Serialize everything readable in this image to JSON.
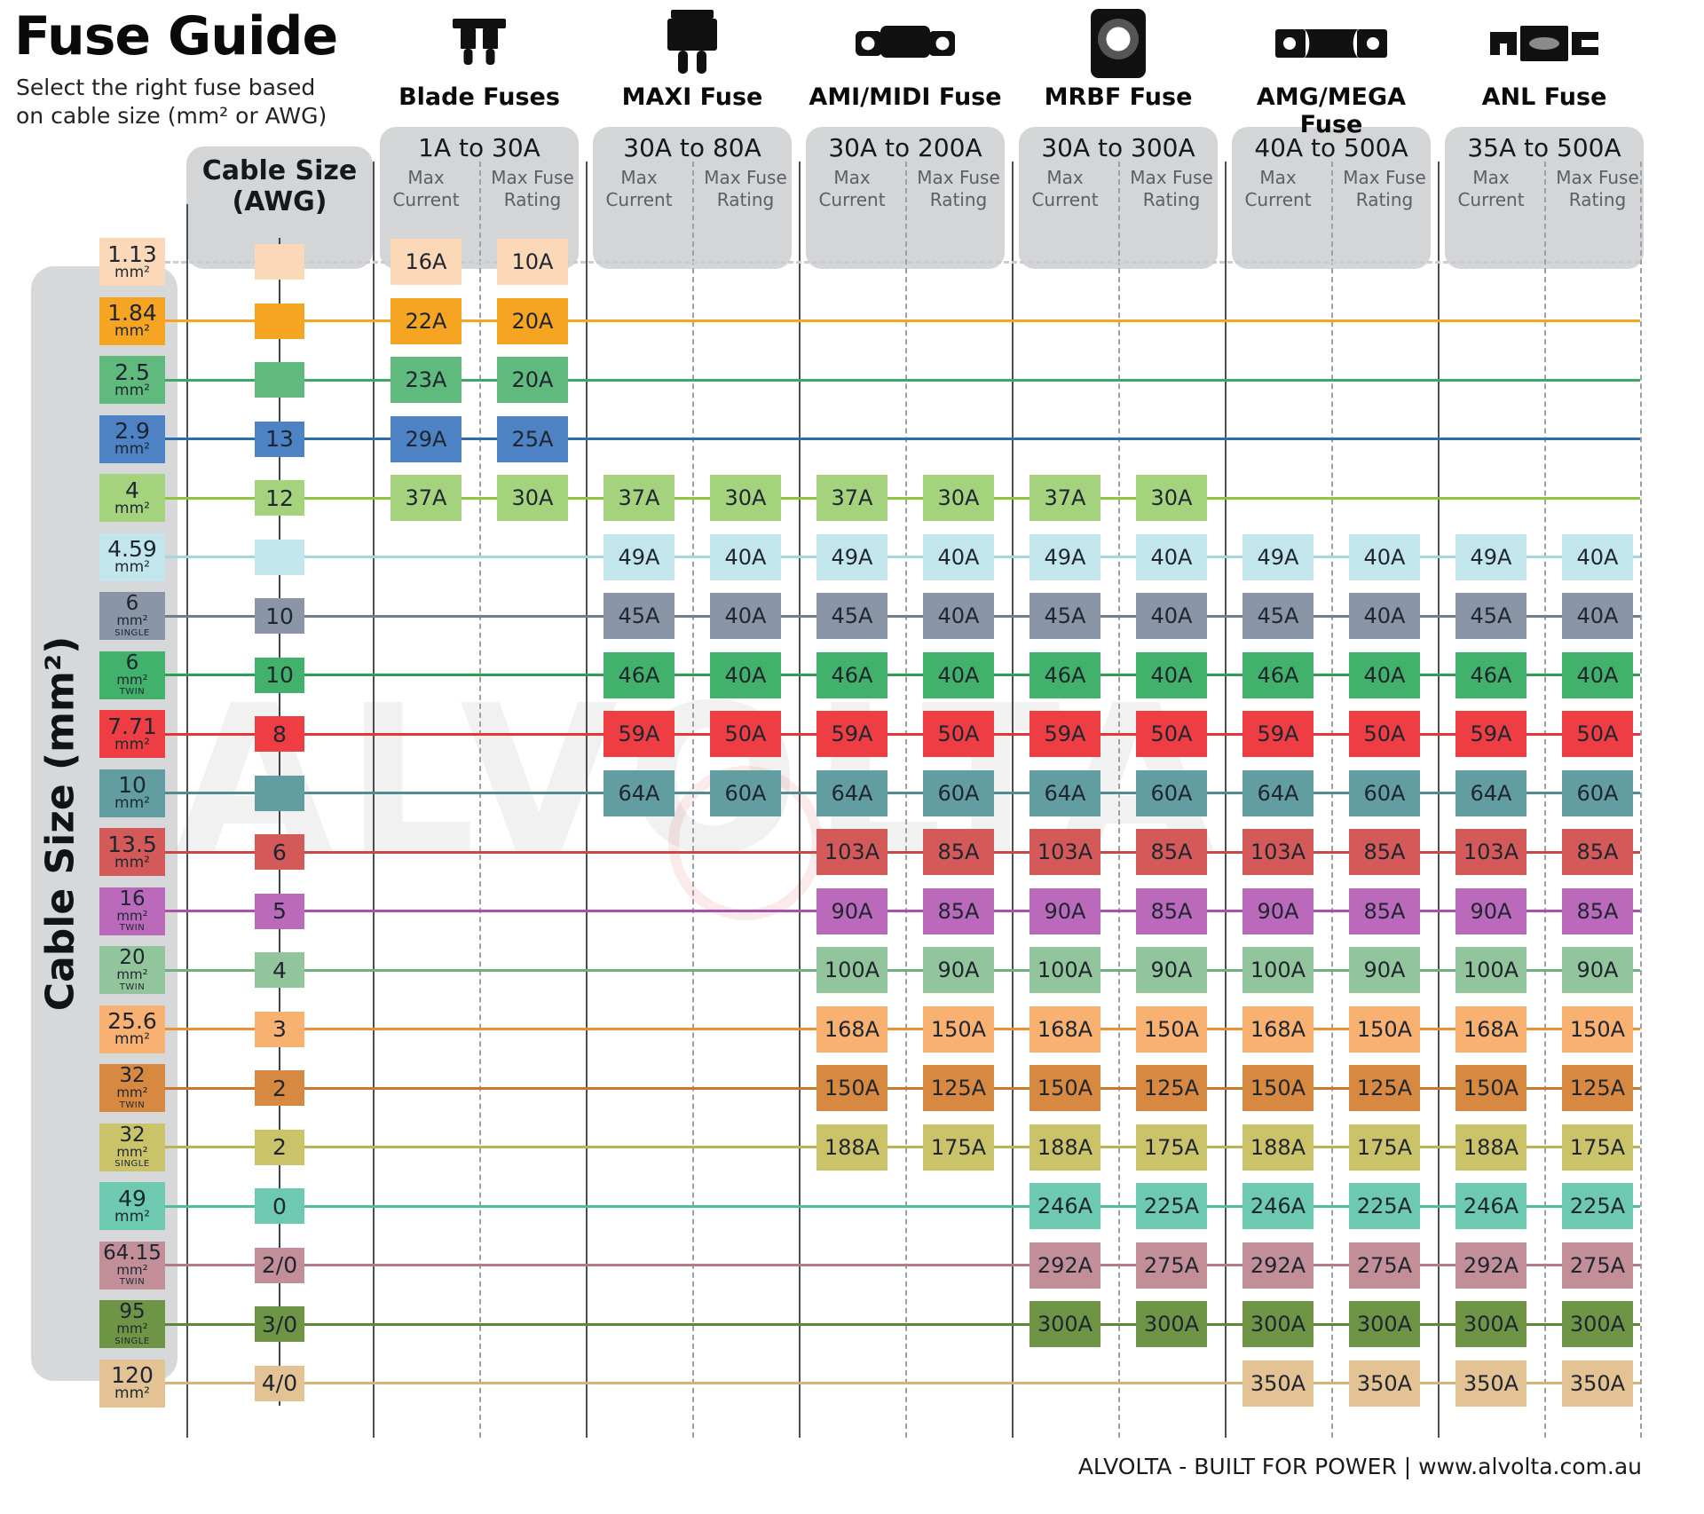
{
  "title": "Fuse Guide",
  "subtitle": [
    "Select the right fuse based",
    "on cable size (mm² or AWG)"
  ],
  "cable_size_mm2_label": "Cable Size (mm²)",
  "cable_size_awg_label": "Cable Size (AWG)",
  "mm2_unit": "mm²",
  "subcol_labels": {
    "current": "Max Current",
    "rating": "Max Fuse Rating"
  },
  "watermark": "ALVOLTA",
  "footer": "ALVOLTA - BUILT FOR POWER | www.alvolta.com.au",
  "fuse_types": [
    {
      "name": "Blade Fuses",
      "range": "1A to 30A",
      "icon": "blade-fuse-icon"
    },
    {
      "name": "MAXI Fuse",
      "range": "30A to 80A",
      "icon": "maxi-fuse-icon"
    },
    {
      "name": "AMI/MIDI Fuse",
      "range": "30A to 200A",
      "icon": "ami-midi-fuse-icon"
    },
    {
      "name": "MRBF Fuse",
      "range": "30A to 300A",
      "icon": "mrbf-fuse-icon"
    },
    {
      "name": "AMG/MEGA Fuse",
      "range": "40A to 500A",
      "icon": "amg-mega-fuse-icon"
    },
    {
      "name": "ANL Fuse",
      "range": "35A to 500A",
      "icon": "anl-fuse-icon"
    }
  ],
  "chart_data": {
    "type": "table",
    "title": "Fuse Guide",
    "columns": [
      "Cable Size (mm²)",
      "Cable Size (AWG)",
      "Blade Fuses Max Current",
      "Blade Fuses Max Fuse Rating",
      "MAXI Fuse Max Current",
      "MAXI Fuse Max Fuse Rating",
      "AMI/MIDI Fuse Max Current",
      "AMI/MIDI Fuse Max Fuse Rating",
      "MRBF Fuse Max Current",
      "MRBF Fuse Max Fuse Rating",
      "AMG/MEGA Fuse Max Current",
      "AMG/MEGA Fuse Max Fuse Rating",
      "ANL Fuse Max Current",
      "ANL Fuse Max Fuse Rating"
    ],
    "rows": [
      {
        "mm2": "1.13",
        "variant": "",
        "awg": "",
        "color": "#fbd9b8",
        "line_color": "#c9ccd1",
        "line_dashed": true,
        "cells": [
          [
            "16A",
            "10A"
          ],
          null,
          null,
          null,
          null,
          null
        ]
      },
      {
        "mm2": "1.84",
        "variant": "",
        "awg": "",
        "color": "#f5a522",
        "line_color": "#f5a522",
        "line_dashed": false,
        "cells": [
          [
            "22A",
            "20A"
          ],
          null,
          null,
          null,
          null,
          null
        ]
      },
      {
        "mm2": "2.5",
        "variant": "",
        "awg": "",
        "color": "#60ba7e",
        "line_color": "#3fa869",
        "line_dashed": false,
        "cells": [
          [
            "23A",
            "20A"
          ],
          null,
          null,
          null,
          null,
          null
        ]
      },
      {
        "mm2": "2.9",
        "variant": "",
        "awg": "13",
        "color": "#4d82c4",
        "line_color": "#2d6cae",
        "line_dashed": false,
        "cells": [
          [
            "29A",
            "25A"
          ],
          null,
          null,
          null,
          null,
          null
        ]
      },
      {
        "mm2": "4",
        "variant": "",
        "awg": "12",
        "color": "#a5d37d",
        "line_color": "#8dc63f",
        "line_dashed": false,
        "cells": [
          [
            "37A",
            "30A"
          ],
          [
            "37A",
            "30A"
          ],
          [
            "37A",
            "30A"
          ],
          [
            "37A",
            "30A"
          ],
          null,
          null
        ]
      },
      {
        "mm2": "4.59",
        "variant": "",
        "awg": "",
        "color": "#c3e6ec",
        "line_color": "#9fd8de",
        "line_dashed": false,
        "cells": [
          null,
          [
            "49A",
            "40A"
          ],
          [
            "49A",
            "40A"
          ],
          [
            "49A",
            "40A"
          ],
          [
            "49A",
            "40A"
          ],
          [
            "49A",
            "40A"
          ]
        ]
      },
      {
        "mm2": "6",
        "variant": "SINGLE",
        "awg": "10",
        "color": "#8a96a7",
        "line_color": "#6f7d8c",
        "line_dashed": false,
        "cells": [
          null,
          [
            "45A",
            "40A"
          ],
          [
            "45A",
            "40A"
          ],
          [
            "45A",
            "40A"
          ],
          [
            "45A",
            "40A"
          ],
          [
            "45A",
            "40A"
          ]
        ]
      },
      {
        "mm2": "6",
        "variant": "TWIN",
        "awg": "10",
        "color": "#42b16c",
        "line_color": "#2b9e58",
        "line_dashed": false,
        "cells": [
          null,
          [
            "46A",
            "40A"
          ],
          [
            "46A",
            "40A"
          ],
          [
            "46A",
            "40A"
          ],
          [
            "46A",
            "40A"
          ],
          [
            "46A",
            "40A"
          ]
        ]
      },
      {
        "mm2": "7.71",
        "variant": "",
        "awg": "8",
        "color": "#ee3e44",
        "line_color": "#e7333a",
        "line_dashed": false,
        "cells": [
          null,
          [
            "59A",
            "50A"
          ],
          [
            "59A",
            "50A"
          ],
          [
            "59A",
            "50A"
          ],
          [
            "59A",
            "50A"
          ],
          [
            "59A",
            "50A"
          ]
        ]
      },
      {
        "mm2": "10",
        "variant": "",
        "awg": "",
        "color": "#629ea1",
        "line_color": "#4f8d90",
        "line_dashed": false,
        "cells": [
          null,
          [
            "64A",
            "60A"
          ],
          [
            "64A",
            "60A"
          ],
          [
            "64A",
            "60A"
          ],
          [
            "64A",
            "60A"
          ],
          [
            "64A",
            "60A"
          ]
        ]
      },
      {
        "mm2": "13.5",
        "variant": "",
        "awg": "6",
        "color": "#d45a5a",
        "line_color": "#cf4444",
        "line_dashed": false,
        "cells": [
          null,
          null,
          [
            "103A",
            "85A"
          ],
          [
            "103A",
            "85A"
          ],
          [
            "103A",
            "85A"
          ],
          [
            "103A",
            "85A"
          ]
        ]
      },
      {
        "mm2": "16",
        "variant": "TWIN",
        "awg": "5",
        "color": "#bb6abb",
        "line_color": "#ae4fae",
        "line_dashed": false,
        "cells": [
          null,
          null,
          [
            "90A",
            "85A"
          ],
          [
            "90A",
            "85A"
          ],
          [
            "90A",
            "85A"
          ],
          [
            "90A",
            "85A"
          ]
        ]
      },
      {
        "mm2": "20",
        "variant": "TWIN",
        "awg": "4",
        "color": "#92c59b",
        "line_color": "#72b081",
        "line_dashed": false,
        "cells": [
          null,
          null,
          [
            "100A",
            "90A"
          ],
          [
            "100A",
            "90A"
          ],
          [
            "100A",
            "90A"
          ],
          [
            "100A",
            "90A"
          ]
        ]
      },
      {
        "mm2": "25.6",
        "variant": "",
        "awg": "3",
        "color": "#f8b170",
        "line_color": "#ef8f33",
        "line_dashed": false,
        "cells": [
          null,
          null,
          [
            "168A",
            "150A"
          ],
          [
            "168A",
            "150A"
          ],
          [
            "168A",
            "150A"
          ],
          [
            "168A",
            "150A"
          ]
        ]
      },
      {
        "mm2": "32",
        "variant": "TWIN",
        "awg": "2",
        "color": "#d78941",
        "line_color": "#cc782c",
        "line_dashed": false,
        "cells": [
          null,
          null,
          [
            "150A",
            "125A"
          ],
          [
            "150A",
            "125A"
          ],
          [
            "150A",
            "125A"
          ],
          [
            "150A",
            "125A"
          ]
        ]
      },
      {
        "mm2": "32",
        "variant": "SINGLE",
        "awg": "2",
        "color": "#cbc36a",
        "line_color": "#bcb352",
        "line_dashed": false,
        "cells": [
          null,
          null,
          [
            "188A",
            "175A"
          ],
          [
            "188A",
            "175A"
          ],
          [
            "188A",
            "175A"
          ],
          [
            "188A",
            "175A"
          ]
        ]
      },
      {
        "mm2": "49",
        "variant": "",
        "awg": "0",
        "color": "#6dcab0",
        "line_color": "#50be9e",
        "line_dashed": false,
        "cells": [
          null,
          null,
          null,
          [
            "246A",
            "225A"
          ],
          [
            "246A",
            "225A"
          ],
          [
            "246A",
            "225A"
          ]
        ]
      },
      {
        "mm2": "64.15",
        "variant": "TWIN",
        "awg": "2/0",
        "color": "#c28f99",
        "line_color": "#b27b86",
        "line_dashed": false,
        "cells": [
          null,
          null,
          null,
          [
            "292A",
            "275A"
          ],
          [
            "292A",
            "275A"
          ],
          [
            "292A",
            "275A"
          ]
        ]
      },
      {
        "mm2": "95",
        "variant": "SINGLE",
        "awg": "3/0",
        "color": "#6e9545",
        "line_color": "#5e8736",
        "line_dashed": false,
        "cells": [
          null,
          null,
          null,
          [
            "300A",
            "300A"
          ],
          [
            "300A",
            "300A"
          ],
          [
            "300A",
            "300A"
          ]
        ]
      },
      {
        "mm2": "120",
        "variant": "",
        "awg": "4/0",
        "color": "#e3c394",
        "line_color": "#d6b277",
        "line_dashed": false,
        "cells": [
          null,
          null,
          null,
          null,
          [
            "350A",
            "350A"
          ],
          [
            "350A",
            "350A"
          ]
        ]
      }
    ]
  }
}
